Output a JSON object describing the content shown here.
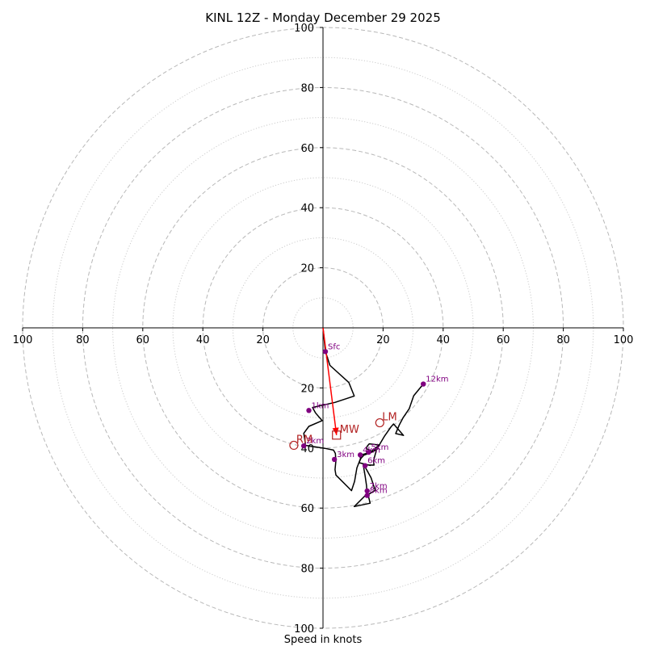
{
  "chart_data": {
    "type": "hodograph",
    "title": "KINL 12Z - Monday December 29 2025",
    "xlabel": "Speed in knots",
    "rings": {
      "major": [
        20,
        40,
        60,
        80,
        100
      ],
      "minor": [
        10,
        30,
        50,
        70,
        90
      ]
    },
    "axis_tick_values": [
      20,
      40,
      60,
      80,
      100
    ],
    "axis_tick_labels": {
      "left": [
        "20",
        "40",
        "60",
        "80",
        "100"
      ],
      "right": [
        "20",
        "40",
        "60",
        "80",
        "100"
      ],
      "up": [
        "20",
        "40",
        "60",
        "80",
        "100"
      ],
      "down": [
        "20",
        "40",
        "60",
        "80",
        "100"
      ]
    },
    "range": 100,
    "profile": [
      [
        0,
        0
      ],
      [
        0.8,
        -7.9
      ],
      [
        2.3,
        -12.5
      ],
      [
        8.6,
        -18.2
      ],
      [
        10.4,
        -22.7
      ],
      [
        4.0,
        -24.8
      ],
      [
        -3.5,
        -26.5
      ],
      [
        -2.5,
        -28.3
      ],
      [
        -0.3,
        -30.9
      ],
      [
        -4.7,
        -32.8
      ],
      [
        -6.4,
        -35.1
      ],
      [
        -5.9,
        -38.2
      ],
      [
        -6.0,
        -39.1
      ],
      [
        -4.5,
        -39.3
      ],
      [
        0.6,
        -40.1
      ],
      [
        3.5,
        -40.7
      ],
      [
        4.1,
        -41.8
      ],
      [
        4.3,
        -44.2
      ],
      [
        4.0,
        -47.2
      ],
      [
        4.3,
        -49.0
      ],
      [
        9.5,
        -54.2
      ],
      [
        10.5,
        -51.1
      ],
      [
        11.3,
        -46.6
      ],
      [
        12.5,
        -43.5
      ],
      [
        12.2,
        -42.4
      ],
      [
        15.7,
        -41.5
      ],
      [
        18.7,
        -39.0
      ],
      [
        15.4,
        -38.6
      ],
      [
        14.7,
        -39.4
      ],
      [
        14.4,
        -40.2
      ],
      [
        16.4,
        -41.1
      ],
      [
        18.4,
        -40.2
      ],
      [
        16.3,
        -41.4
      ],
      [
        13.6,
        -42.4
      ],
      [
        12.6,
        -43.5
      ],
      [
        12.0,
        -44.9
      ],
      [
        15.7,
        -45.8
      ],
      [
        13.2,
        -45.2
      ],
      [
        13.9,
        -46.1
      ],
      [
        16.0,
        -49.9
      ],
      [
        17.4,
        -54.1
      ],
      [
        14.7,
        -55.7
      ],
      [
        14.6,
        -54.3
      ],
      [
        14.7,
        -55.8
      ],
      [
        15.2,
        -56.3
      ],
      [
        15.7,
        -58.4
      ],
      [
        10.4,
        -59.5
      ],
      [
        14.5,
        -55.4
      ],
      [
        14.6,
        -54.4
      ],
      [
        14.5,
        -52.5
      ],
      [
        14.0,
        -49.2
      ],
      [
        13.4,
        -45.6
      ],
      [
        17.0,
        -45.7
      ],
      [
        16.8,
        -44.3
      ],
      [
        17.8,
        -40.6
      ],
      [
        20.5,
        -36.0
      ],
      [
        22.6,
        -33.0
      ],
      [
        23.5,
        -32.0
      ],
      [
        26.8,
        -35.8
      ],
      [
        24.2,
        -35.2
      ],
      [
        25.4,
        -32.3
      ],
      [
        26.6,
        -30.0
      ],
      [
        28.7,
        -26.9
      ],
      [
        30.2,
        -22.6
      ],
      [
        33.4,
        -18.7
      ]
    ],
    "level_points": [
      {
        "label": "Sfc",
        "u": 0.8,
        "v": -7.9
      },
      {
        "label": "1km",
        "u": -4.7,
        "v": -27.5
      },
      {
        "label": "2km",
        "u": -6.4,
        "v": -39.3
      },
      {
        "label": "3km",
        "u": 3.8,
        "v": -43.8
      },
      {
        "label": "4km",
        "u": 12.4,
        "v": -42.3
      },
      {
        "label": "5km",
        "u": 15.2,
        "v": -41.4
      },
      {
        "label": "6km",
        "u": 14.0,
        "v": -45.9
      },
      {
        "label": "7km",
        "u": 14.7,
        "v": -54.3
      },
      {
        "label": "8km",
        "u": 14.7,
        "v": -55.8
      },
      {
        "label": "12km",
        "u": 33.4,
        "v": -18.7
      }
    ],
    "storm_motion": {
      "right_mover": {
        "label": "RM",
        "u": -9.7,
        "v": -39.1
      },
      "left_mover": {
        "label": "LM",
        "u": 18.9,
        "v": -31.6
      },
      "mean_wind": {
        "label": "MW",
        "u": 4.5,
        "v": -35.7
      }
    },
    "shear_vector": {
      "from": [
        0,
        0
      ],
      "to": [
        4.5,
        -35.7
      ]
    },
    "colors": {
      "profile": "#000000",
      "level_marker": "#800080",
      "storm_motion": "#b22222",
      "shear_arrow": "#ff0000",
      "ring_major": "#b8b8b8",
      "ring_minor": "#cccccc"
    }
  }
}
